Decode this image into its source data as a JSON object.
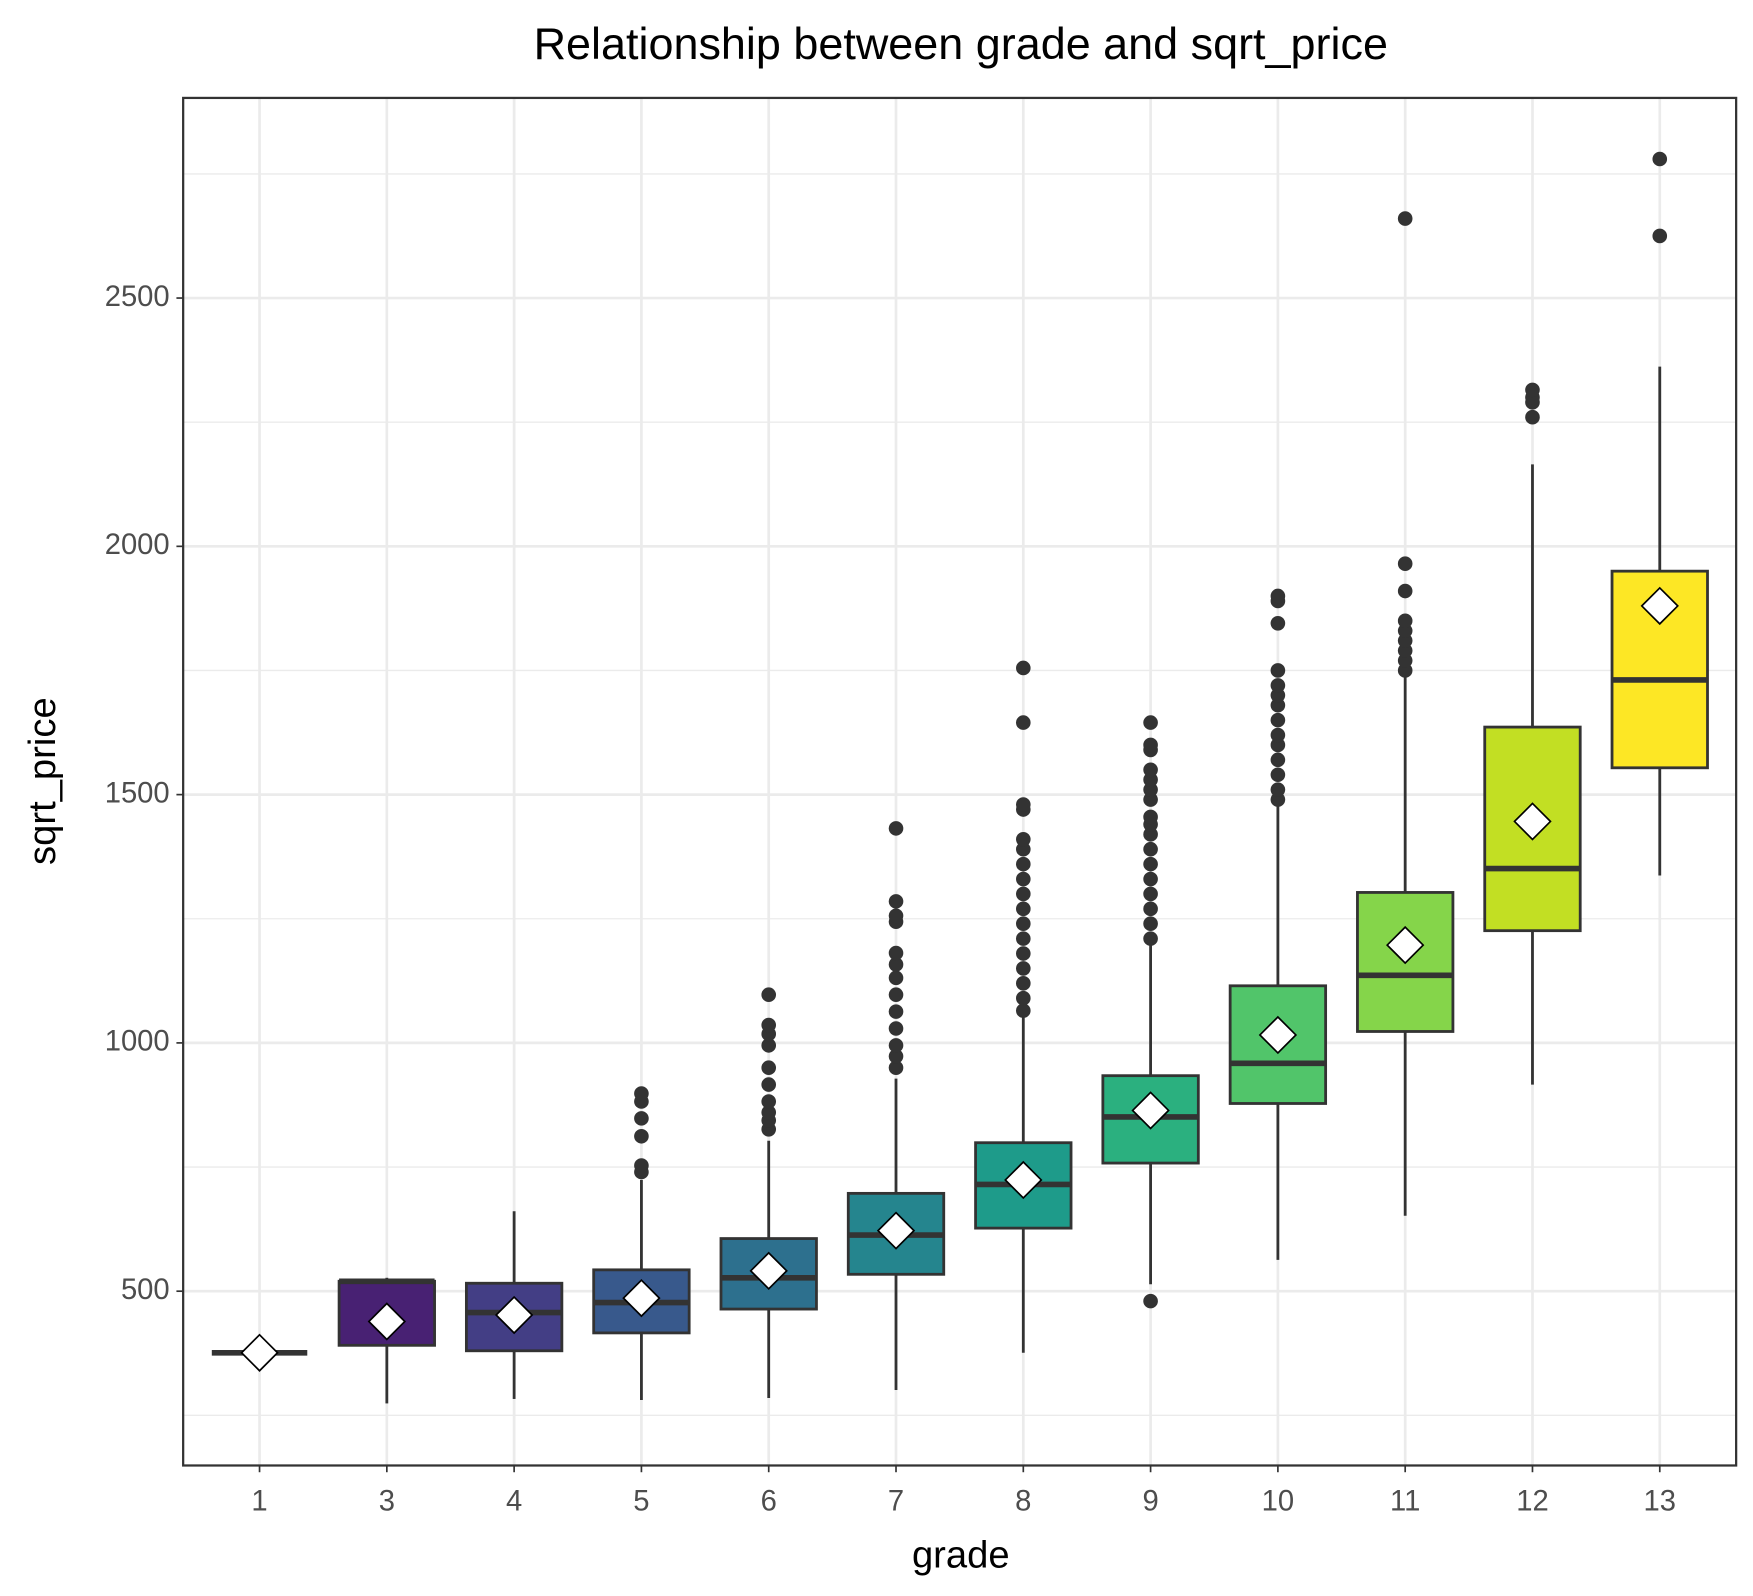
{
  "chart_data": {
    "type": "boxplot",
    "title": "Relationship between grade and sqrt_price",
    "x_label": "grade",
    "y_label": "sqrt_price",
    "categories": [
      "1",
      "3",
      "4",
      "5",
      "6",
      "7",
      "8",
      "9",
      "10",
      "11",
      "12",
      "13"
    ],
    "ylim": [
      149,
      2903
    ],
    "yticks": [
      500,
      1000,
      1500,
      2000,
      2500
    ],
    "y_minor_grid": [
      250,
      750,
      1250,
      1750,
      2250,
      2750
    ],
    "grid": true,
    "boxes": [
      {
        "whisker_low": 376,
        "q1": 376,
        "median": 376,
        "q3": 376,
        "whisker_high": 376,
        "mean": 376,
        "outliers": [],
        "color": "#440154"
      },
      {
        "whisker_low": 274,
        "q1": 391,
        "median": 520,
        "q3": 520,
        "whisker_high": 527,
        "mean": 439,
        "outliers": [],
        "color": "#482173"
      },
      {
        "whisker_low": 283,
        "q1": 380,
        "median": 457,
        "q3": 516,
        "whisker_high": 661,
        "mean": 452,
        "outliers": [],
        "color": "#433E85"
      },
      {
        "whisker_low": 281,
        "q1": 416,
        "median": 477,
        "q3": 543,
        "whisker_high": 724,
        "mean": 486,
        "outliers": [
          740,
          753,
          812,
          848,
          882,
          898
        ],
        "color": "#38598C"
      },
      {
        "whisker_low": 285,
        "q1": 464,
        "median": 527,
        "q3": 606,
        "whisker_high": 803,
        "mean": 541,
        "outliers": [
          826,
          844,
          860,
          882,
          916,
          950,
          995,
          1018,
          1036,
          1097
        ],
        "color": "#2D708E"
      },
      {
        "whisker_low": 301,
        "q1": 534,
        "median": 613,
        "q3": 697,
        "whisker_high": 928,
        "mean": 622,
        "outliers": [
          950,
          973,
          995,
          1029,
          1063,
          1097,
          1131,
          1158,
          1181,
          1244,
          1256,
          1285,
          1432
        ],
        "color": "#25858E"
      },
      {
        "whisker_low": 376,
        "q1": 627,
        "median": 715,
        "q3": 799,
        "whisker_high": 1052,
        "mean": 724,
        "outliers": [
          1065,
          1090,
          1120,
          1150,
          1180,
          1210,
          1240,
          1270,
          1300,
          1330,
          1360,
          1390,
          1410,
          1470,
          1480,
          1645,
          1755
        ],
        "color": "#1E9B8A"
      },
      {
        "whisker_low": 514,
        "q1": 758,
        "median": 851,
        "q3": 934,
        "whisker_high": 1199,
        "mean": 864,
        "outliers": [
          480,
          1210,
          1240,
          1270,
          1300,
          1330,
          1360,
          1390,
          1420,
          1440,
          1455,
          1490,
          1510,
          1530,
          1550,
          1590,
          1600,
          1645
        ],
        "color": "#2BB07F"
      },
      {
        "whisker_low": 563,
        "q1": 878,
        "median": 959,
        "q3": 1115,
        "whisker_high": 1486,
        "mean": 1016,
        "outliers": [
          1490,
          1510,
          1540,
          1570,
          1600,
          1620,
          1650,
          1680,
          1700,
          1720,
          1750,
          1845,
          1890,
          1900
        ],
        "color": "#51C56A"
      },
      {
        "whisker_low": 652,
        "q1": 1023,
        "median": 1136,
        "q3": 1303,
        "whisker_high": 1747,
        "mean": 1197,
        "outliers": [
          1750,
          1770,
          1790,
          1810,
          1830,
          1850,
          1910,
          1965,
          2660
        ],
        "color": "#85D54A"
      },
      {
        "whisker_low": 916,
        "q1": 1226,
        "median": 1351,
        "q3": 1636,
        "whisker_high": 2165,
        "mean": 1446,
        "outliers": [
          2260,
          2290,
          2300,
          2315
        ],
        "color": "#C2DF23"
      },
      {
        "whisker_low": 1337,
        "q1": 1554,
        "median": 1731,
        "q3": 1950,
        "whisker_high": 2362,
        "mean": 1880,
        "outliers": [
          2625,
          2780
        ],
        "color": "#FDE725"
      }
    ]
  }
}
